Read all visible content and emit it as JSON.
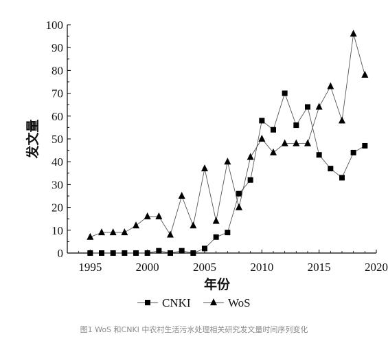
{
  "caption": "图1 WoS 和CNKI 中农村生活污水处理相关研究发文量时间序列变化",
  "chart_data": {
    "type": "line",
    "title": "",
    "xlabel": "年份",
    "ylabel": "发文量",
    "xlim": [
      1993,
      2020
    ],
    "ylim": [
      0,
      100
    ],
    "x_ticks": [
      "1995",
      "2000",
      "2005",
      "2010",
      "2015",
      "2020"
    ],
    "y_ticks": [
      "0",
      "10",
      "20",
      "30",
      "40",
      "50",
      "60",
      "70",
      "80",
      "90",
      "100"
    ],
    "grid": false,
    "legend_position": "bottom-center",
    "x": [
      1995,
      1996,
      1997,
      1998,
      1999,
      2000,
      2001,
      2002,
      2003,
      2004,
      2005,
      2006,
      2007,
      2008,
      2009,
      2010,
      2011,
      2012,
      2013,
      2014,
      2015,
      2016,
      2017,
      2018,
      2019
    ],
    "series": [
      {
        "name": "CNKI",
        "marker": "square",
        "values": [
          0,
          0,
          0,
          0,
          0,
          0,
          1,
          0,
          1,
          0,
          2,
          7,
          9,
          26,
          32,
          58,
          54,
          70,
          56,
          64,
          43,
          37,
          33,
          44,
          47
        ]
      },
      {
        "name": "WoS",
        "marker": "triangle",
        "values": [
          7,
          9,
          9,
          9,
          12,
          16,
          16,
          8,
          25,
          12,
          37,
          14,
          40,
          20,
          42,
          50,
          44,
          48,
          48,
          48,
          64,
          73,
          58,
          96,
          78
        ]
      }
    ],
    "colors": {
      "line": "#555555",
      "marker": "#000000"
    }
  }
}
